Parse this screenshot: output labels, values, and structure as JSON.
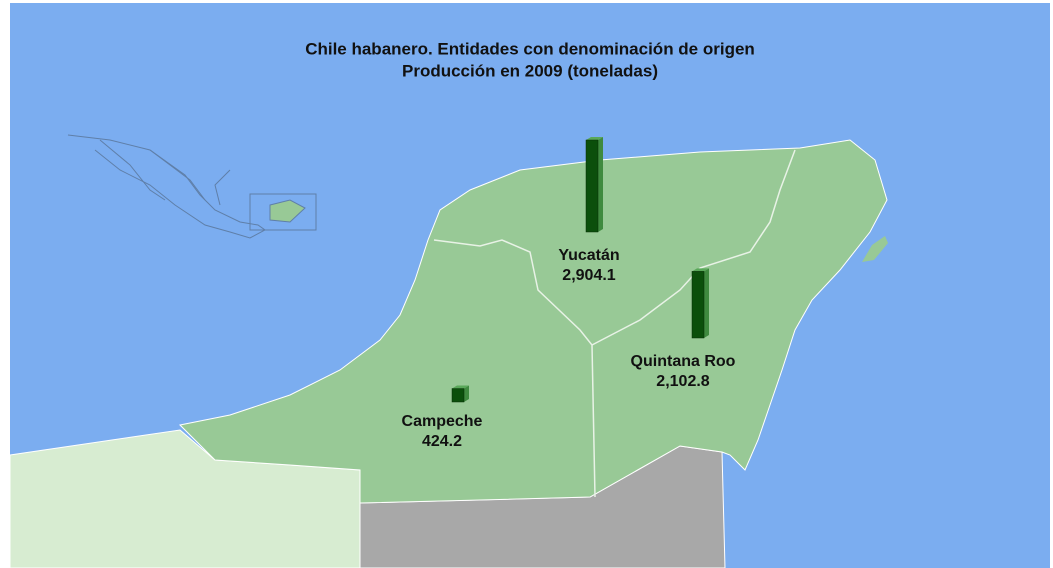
{
  "chart_data": {
    "type": "bar",
    "title": "Chile habanero. Entidades con denominación de origen",
    "subtitle": "Producción en 2009 (toneladas)",
    "categories": [
      "Yucatán",
      "Quintana Roo",
      "Campeche"
    ],
    "values": [
      2904.1,
      2102.8,
      424.2
    ],
    "value_labels": [
      "2,904.1",
      "2,102.8",
      "424.2"
    ],
    "color": "#0b4f0b"
  }
}
